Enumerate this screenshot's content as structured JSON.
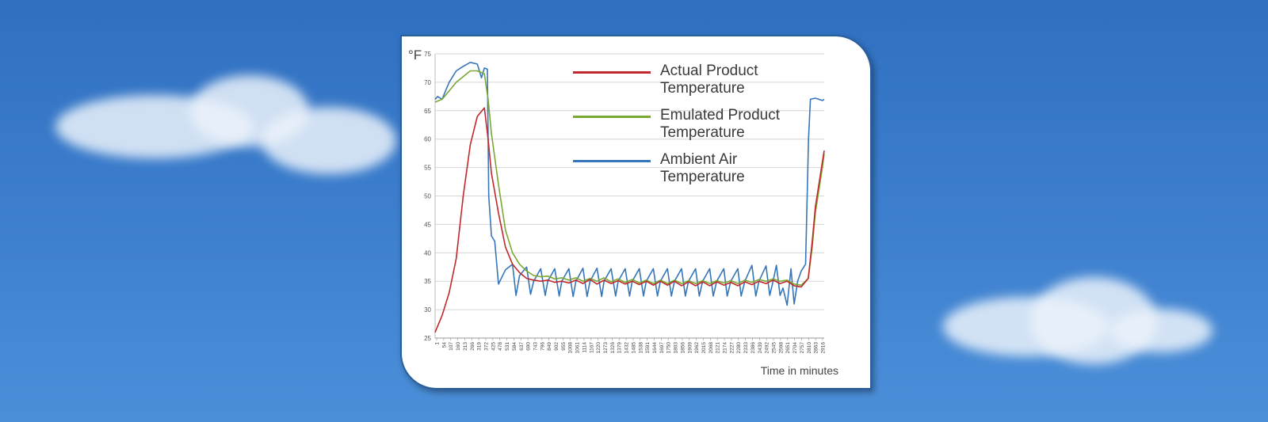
{
  "chart_data": {
    "type": "line",
    "unit_label": "°F",
    "xlabel": "Time in minutes",
    "ylim": [
      25,
      75
    ],
    "yticks": [
      25,
      30,
      35,
      40,
      45,
      50,
      55,
      60,
      65,
      70,
      75
    ],
    "x_tick_labels": [
      "1",
      "54",
      "107",
      "160",
      "213",
      "266",
      "319",
      "372",
      "425",
      "478",
      "531",
      "584",
      "637",
      "690",
      "743",
      "796",
      "849",
      "902",
      "955",
      "1008",
      "1061",
      "1114",
      "1167",
      "1220",
      "1273",
      "1326",
      "1379",
      "1432",
      "1485",
      "1538",
      "1591",
      "1644",
      "1697",
      "1750",
      "1803",
      "1856",
      "1909",
      "1962",
      "2015",
      "2068",
      "2121",
      "2174",
      "2227",
      "2280",
      "2333",
      "2386",
      "2439",
      "2492",
      "2545",
      "2598",
      "2651",
      "2704",
      "2757",
      "2810",
      "2863",
      "2916"
    ],
    "xlim": [
      1,
      2930
    ],
    "grid": true,
    "legend_position": "top-right",
    "series": [
      {
        "name": "Actual Product Temperature",
        "color": "#c0282d",
        "points": [
          [
            1,
            26
          ],
          [
            54,
            29
          ],
          [
            107,
            33
          ],
          [
            160,
            39
          ],
          [
            213,
            50
          ],
          [
            266,
            59
          ],
          [
            319,
            64
          ],
          [
            372,
            65.5
          ],
          [
            400,
            60
          ],
          [
            425,
            54
          ],
          [
            478,
            47
          ],
          [
            531,
            41
          ],
          [
            584,
            38
          ],
          [
            637,
            36.5
          ],
          [
            690,
            35.5
          ],
          [
            743,
            35.2
          ],
          [
            796,
            35
          ],
          [
            849,
            35.2
          ],
          [
            902,
            34.8
          ],
          [
            955,
            35
          ],
          [
            1008,
            34.7
          ],
          [
            1061,
            35.2
          ],
          [
            1114,
            34.6
          ],
          [
            1167,
            35.3
          ],
          [
            1220,
            34.5
          ],
          [
            1273,
            35.2
          ],
          [
            1326,
            34.6
          ],
          [
            1379,
            35.1
          ],
          [
            1432,
            34.5
          ],
          [
            1485,
            35
          ],
          [
            1538,
            34.4
          ],
          [
            1591,
            35
          ],
          [
            1644,
            34.3
          ],
          [
            1697,
            35
          ],
          [
            1750,
            34.3
          ],
          [
            1803,
            35
          ],
          [
            1856,
            34.2
          ],
          [
            1909,
            34.9
          ],
          [
            1962,
            34.2
          ],
          [
            2015,
            34.9
          ],
          [
            2068,
            34.2
          ],
          [
            2121,
            34.9
          ],
          [
            2174,
            34.3
          ],
          [
            2227,
            34.8
          ],
          [
            2280,
            34.2
          ],
          [
            2333,
            34.9
          ],
          [
            2386,
            34.4
          ],
          [
            2439,
            35
          ],
          [
            2492,
            34.6
          ],
          [
            2545,
            35.2
          ],
          [
            2598,
            34.6
          ],
          [
            2651,
            35
          ],
          [
            2704,
            34.2
          ],
          [
            2757,
            34
          ],
          [
            2810,
            35.5
          ],
          [
            2840,
            42
          ],
          [
            2863,
            48
          ],
          [
            2916,
            56
          ],
          [
            2930,
            58
          ]
        ]
      },
      {
        "name": "Emulated Product Temperature",
        "color": "#7aa832",
        "points": [
          [
            1,
            66.5
          ],
          [
            54,
            67
          ],
          [
            107,
            68.5
          ],
          [
            160,
            70
          ],
          [
            213,
            71
          ],
          [
            266,
            72
          ],
          [
            319,
            72
          ],
          [
            372,
            71.5
          ],
          [
            400,
            67
          ],
          [
            425,
            61
          ],
          [
            478,
            52
          ],
          [
            531,
            44
          ],
          [
            584,
            40
          ],
          [
            637,
            38
          ],
          [
            690,
            36.8
          ],
          [
            743,
            36
          ],
          [
            796,
            35.8
          ],
          [
            849,
            35.9
          ],
          [
            902,
            35.4
          ],
          [
            955,
            35.6
          ],
          [
            1008,
            35.2
          ],
          [
            1061,
            35.6
          ],
          [
            1114,
            35
          ],
          [
            1167,
            35.5
          ],
          [
            1220,
            35
          ],
          [
            1273,
            35.6
          ],
          [
            1326,
            34.9
          ],
          [
            1379,
            35.4
          ],
          [
            1432,
            34.8
          ],
          [
            1485,
            35.3
          ],
          [
            1538,
            34.7
          ],
          [
            1591,
            35.2
          ],
          [
            1644,
            34.6
          ],
          [
            1697,
            35.2
          ],
          [
            1750,
            34.6
          ],
          [
            1803,
            35.2
          ],
          [
            1856,
            34.6
          ],
          [
            1909,
            35.1
          ],
          [
            1962,
            34.6
          ],
          [
            2015,
            35.1
          ],
          [
            2068,
            34.6
          ],
          [
            2121,
            35.1
          ],
          [
            2174,
            34.7
          ],
          [
            2227,
            35.1
          ],
          [
            2280,
            34.6
          ],
          [
            2333,
            35.2
          ],
          [
            2386,
            34.8
          ],
          [
            2439,
            35.3
          ],
          [
            2492,
            35
          ],
          [
            2545,
            35.4
          ],
          [
            2598,
            35
          ],
          [
            2651,
            35.2
          ],
          [
            2704,
            34.5
          ],
          [
            2757,
            34.3
          ],
          [
            2810,
            35.5
          ],
          [
            2840,
            41
          ],
          [
            2863,
            47
          ],
          [
            2916,
            55
          ],
          [
            2930,
            57.5
          ]
        ]
      },
      {
        "name": "Ambient Air Temperature",
        "color": "#3676b8",
        "points": [
          [
            1,
            67
          ],
          [
            20,
            67.5
          ],
          [
            54,
            67
          ],
          [
            80,
            68.5
          ],
          [
            107,
            70
          ],
          [
            160,
            72
          ],
          [
            213,
            72.8
          ],
          [
            266,
            73.5
          ],
          [
            319,
            73.2
          ],
          [
            350,
            70.8
          ],
          [
            372,
            72.5
          ],
          [
            395,
            72.3
          ],
          [
            405,
            50
          ],
          [
            425,
            43
          ],
          [
            450,
            42
          ],
          [
            478,
            34.5
          ],
          [
            531,
            37
          ],
          [
            584,
            38
          ],
          [
            610,
            32.5
          ],
          [
            637,
            36
          ],
          [
            690,
            37.5
          ],
          [
            720,
            32.7
          ],
          [
            743,
            35
          ],
          [
            796,
            37.2
          ],
          [
            830,
            32.5
          ],
          [
            849,
            35
          ],
          [
            902,
            37.2
          ],
          [
            935,
            32.4
          ],
          [
            955,
            35
          ],
          [
            1008,
            37.2
          ],
          [
            1040,
            32.3
          ],
          [
            1061,
            35
          ],
          [
            1114,
            37.3
          ],
          [
            1145,
            32.3
          ],
          [
            1167,
            35
          ],
          [
            1220,
            37.3
          ],
          [
            1255,
            32.3
          ],
          [
            1273,
            35
          ],
          [
            1326,
            37.2
          ],
          [
            1360,
            32.4
          ],
          [
            1379,
            35
          ],
          [
            1432,
            37.2
          ],
          [
            1465,
            32.4
          ],
          [
            1485,
            35
          ],
          [
            1538,
            37.2
          ],
          [
            1570,
            32.4
          ],
          [
            1591,
            35
          ],
          [
            1644,
            37.2
          ],
          [
            1675,
            32.4
          ],
          [
            1697,
            35
          ],
          [
            1750,
            37.2
          ],
          [
            1780,
            32.4
          ],
          [
            1803,
            35
          ],
          [
            1856,
            37.2
          ],
          [
            1885,
            32.4
          ],
          [
            1909,
            35
          ],
          [
            1962,
            37.2
          ],
          [
            1990,
            32.4
          ],
          [
            2015,
            35
          ],
          [
            2068,
            37.2
          ],
          [
            2095,
            32.4
          ],
          [
            2121,
            35
          ],
          [
            2174,
            37.2
          ],
          [
            2200,
            32.4
          ],
          [
            2227,
            35
          ],
          [
            2280,
            37.2
          ],
          [
            2305,
            32.4
          ],
          [
            2333,
            35
          ],
          [
            2386,
            37.8
          ],
          [
            2415,
            32.4
          ],
          [
            2439,
            35
          ],
          [
            2492,
            37.7
          ],
          [
            2520,
            32.5
          ],
          [
            2545,
            35
          ],
          [
            2570,
            37.8
          ],
          [
            2598,
            32.5
          ],
          [
            2620,
            33.8
          ],
          [
            2651,
            30.8
          ],
          [
            2680,
            37.2
          ],
          [
            2704,
            31
          ],
          [
            2730,
            35
          ],
          [
            2757,
            36.8
          ],
          [
            2790,
            38
          ],
          [
            2812,
            60
          ],
          [
            2826,
            67
          ],
          [
            2863,
            67.2
          ],
          [
            2916,
            66.8
          ],
          [
            2930,
            67
          ]
        ]
      }
    ]
  }
}
